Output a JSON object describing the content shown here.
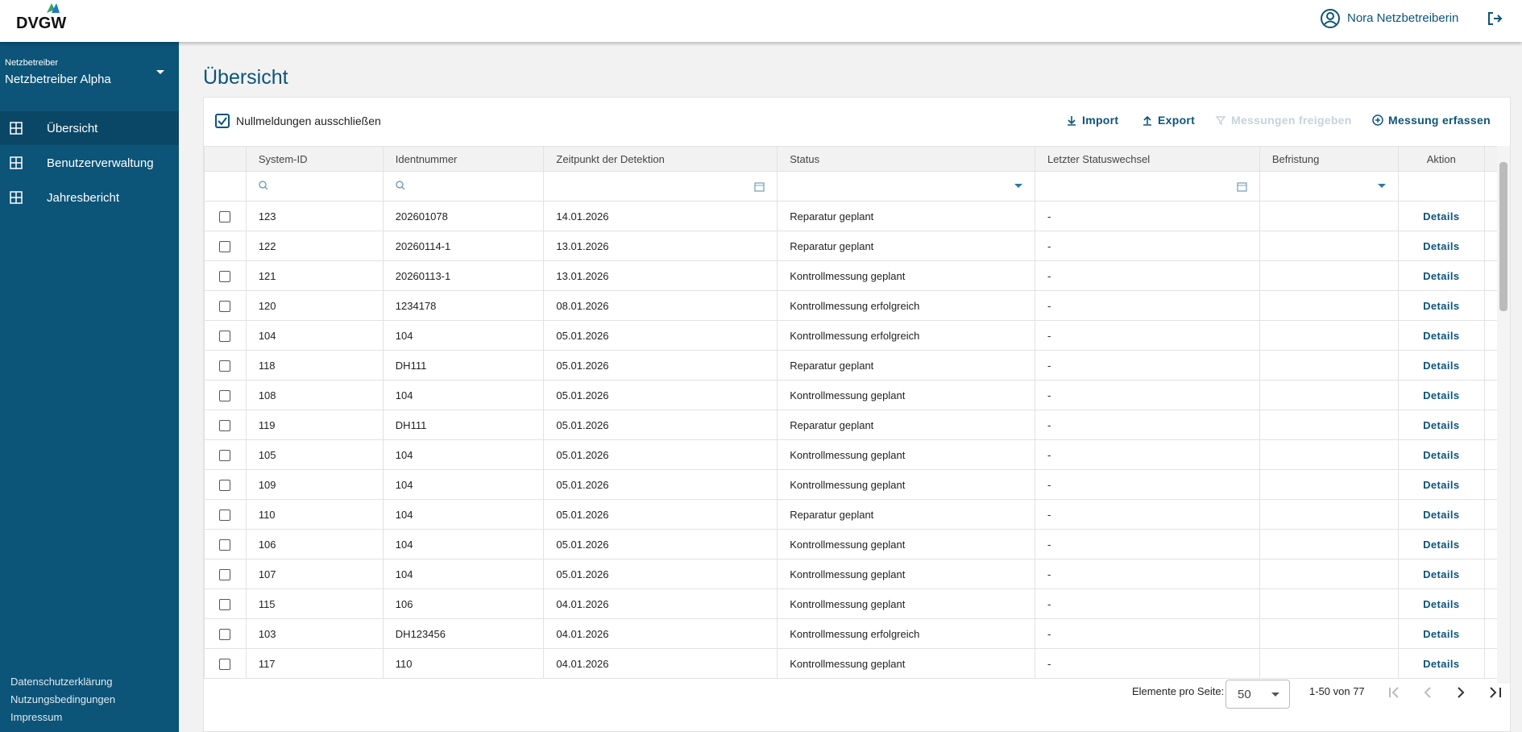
{
  "header": {
    "logo": "DVGW",
    "user": "Nora Netzbetreiberin"
  },
  "sidebar": {
    "org_label": "Netzbetreiber",
    "org_name": "Netzbetreiber Alpha",
    "nav": [
      "Übersicht",
      "Benutzerverwaltung",
      "Jahresbericht"
    ],
    "footer": [
      "Datenschutzerklärung",
      "Nutzungsbedingungen",
      "Impressum"
    ]
  },
  "page": {
    "title": "Übersicht"
  },
  "toolbar": {
    "checkbox": "Nullmeldungen ausschließen",
    "buttons": [
      "Import",
      "Export",
      "Messungen freigeben",
      "Messung erfassen"
    ]
  },
  "table": {
    "columns": [
      "System-ID",
      "Identnummer",
      "Zeitpunkt der Detektion",
      "Status",
      "Letzter Statuswechsel",
      "Befristung",
      "Aktion"
    ],
    "rows": [
      [
        "123",
        "202601078",
        "14.01.2026",
        "Reparatur geplant",
        "-",
        "",
        "Details"
      ],
      [
        "122",
        "20260114-1",
        "13.01.2026",
        "Reparatur geplant",
        "-",
        "",
        "Details"
      ],
      [
        "121",
        "20260113-1",
        "13.01.2026",
        "Kontrollmessung geplant",
        "-",
        "",
        "Details"
      ],
      [
        "120",
        "1234178",
        "08.01.2026",
        "Kontrollmessung erfolgreich",
        "-",
        "",
        "Details"
      ],
      [
        "104",
        "104",
        "05.01.2026",
        "Kontrollmessung erfolgreich",
        "-",
        "",
        "Details"
      ],
      [
        "118",
        "DH111",
        "05.01.2026",
        "Reparatur geplant",
        "-",
        "",
        "Details"
      ],
      [
        "108",
        "104",
        "05.01.2026",
        "Kontrollmessung geplant",
        "-",
        "",
        "Details"
      ],
      [
        "119",
        "DH111",
        "05.01.2026",
        "Reparatur geplant",
        "-",
        "",
        "Details"
      ],
      [
        "105",
        "104",
        "05.01.2026",
        "Kontrollmessung geplant",
        "-",
        "",
        "Details"
      ],
      [
        "109",
        "104",
        "05.01.2026",
        "Kontrollmessung geplant",
        "-",
        "",
        "Details"
      ],
      [
        "110",
        "104",
        "05.01.2026",
        "Reparatur geplant",
        "-",
        "",
        "Details"
      ],
      [
        "106",
        "104",
        "05.01.2026",
        "Kontrollmessung geplant",
        "-",
        "",
        "Details"
      ],
      [
        "107",
        "104",
        "05.01.2026",
        "Kontrollmessung geplant",
        "-",
        "",
        "Details"
      ],
      [
        "115",
        "106",
        "04.01.2026",
        "Kontrollmessung geplant",
        "-",
        "",
        "Details"
      ],
      [
        "103",
        "DH123456",
        "04.01.2026",
        "Kontrollmessung erfolgreich",
        "-",
        "",
        "Details"
      ],
      [
        "117",
        "110",
        "04.01.2026",
        "Kontrollmessung geplant",
        "-",
        "",
        "Details"
      ]
    ]
  },
  "pagination": {
    "label": "Elemente pro Seite:",
    "page_size": "50",
    "range": "1-50 von 77"
  }
}
